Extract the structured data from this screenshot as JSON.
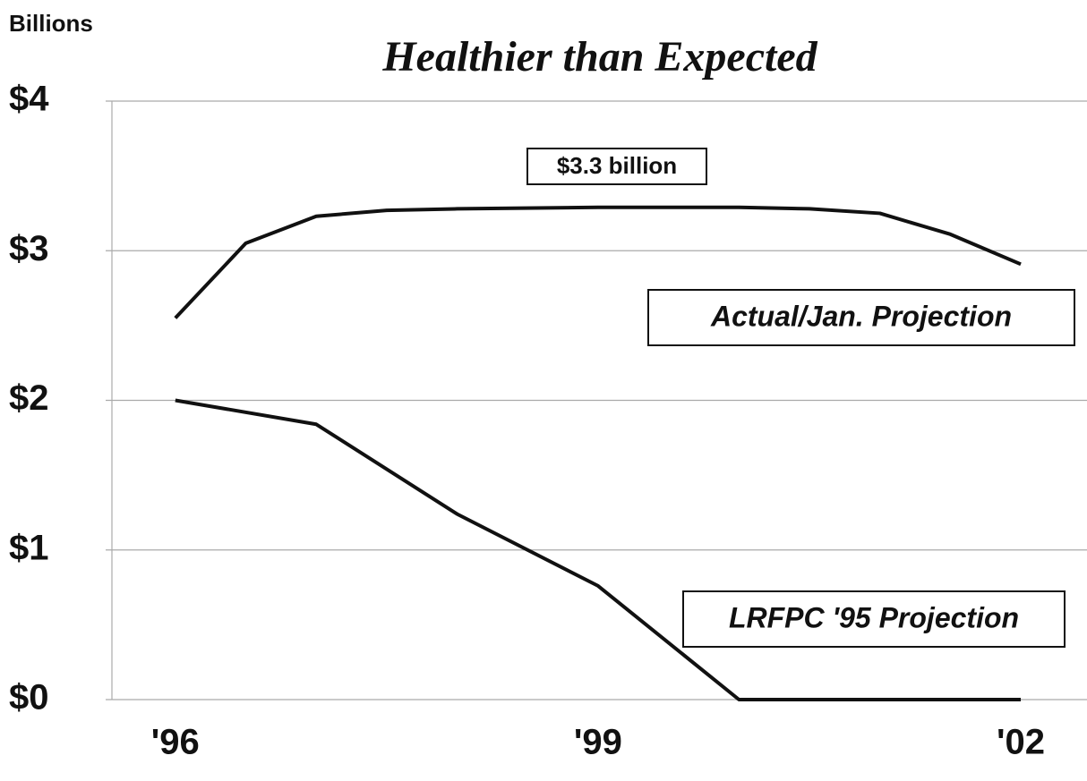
{
  "chart_data": {
    "type": "line",
    "subtitle": "Healthier than Expected",
    "y_axis_label": "Billions",
    "annotation": "$3.3 billion",
    "x": [
      1996,
      1996.5,
      1997,
      1997.5,
      1998,
      1999,
      2000,
      2000.5,
      2001,
      2001.5,
      2002
    ],
    "series": [
      {
        "name": "Actual/Jan. Projection",
        "color": "#111111",
        "values": [
          2.55,
          3.05,
          3.23,
          3.27,
          3.28,
          3.29,
          3.29,
          3.28,
          3.25,
          3.11,
          2.91
        ]
      },
      {
        "name": "LRFPC '95 Projection",
        "color": "#111111",
        "values": [
          2.0,
          null,
          1.84,
          null,
          1.24,
          0.76,
          0,
          null,
          null,
          null,
          0
        ]
      }
    ],
    "xlim": [
      1995.55,
      2002.47
    ],
    "xticks": [
      {
        "value": 1996,
        "label": "'96"
      },
      {
        "value": 1999,
        "label": "'99"
      },
      {
        "value": 2002,
        "label": "'02"
      }
    ],
    "ylim": [
      0,
      4
    ],
    "yticks": [
      {
        "value": 0,
        "label": "$0"
      },
      {
        "value": 1,
        "label": "$1"
      },
      {
        "value": 2,
        "label": "$2"
      },
      {
        "value": 3,
        "label": "$3"
      },
      {
        "value": 4,
        "label": "$4"
      }
    ],
    "grid": true
  }
}
